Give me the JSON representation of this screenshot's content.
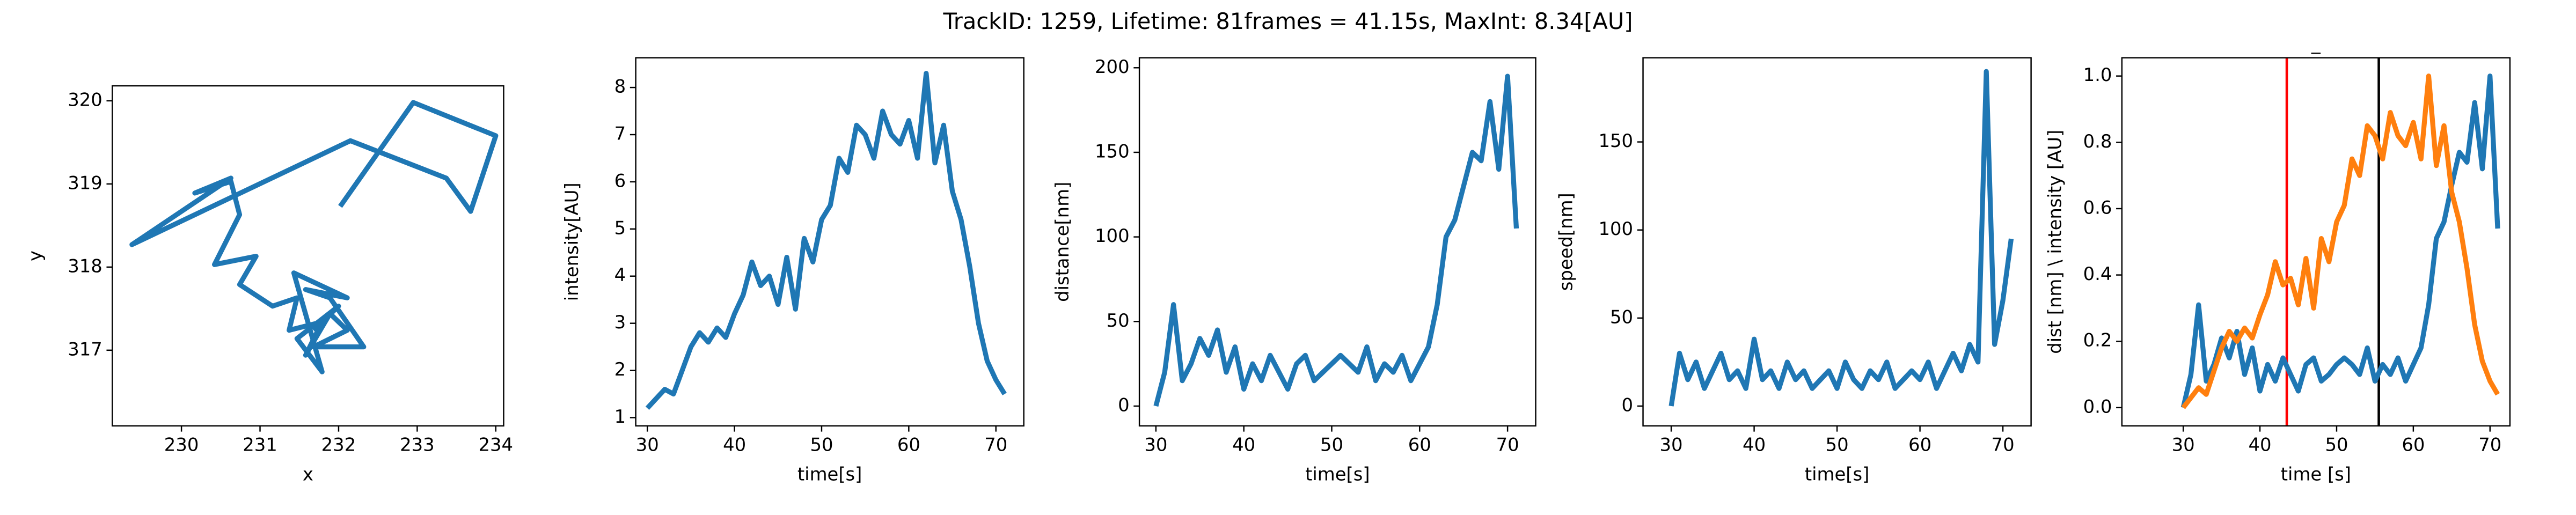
{
  "title": "TrackID: 1259, Lifetime: 81frames = 41.15s, MaxInt: 8.34[AU]",
  "chart_data": [
    {
      "type": "line",
      "xlabel": "x",
      "ylabel": "y",
      "x": [
        232.02,
        232.95,
        234.0,
        233.68,
        233.37,
        232.15,
        229.37,
        230.63,
        230.17,
        230.63,
        230.74,
        230.42,
        230.95,
        230.74,
        231.16,
        231.47,
        231.37,
        231.79,
        231.58,
        231.89,
        232.11,
        231.68,
        232.32,
        231.89,
        231.58,
        232.11,
        231.43,
        231.79,
        231.47,
        232.0,
        231.68
      ],
      "series": [
        {
          "color": "#1f77b4",
          "values": [
            318.73,
            319.98,
            319.58,
            318.67,
            319.07,
            319.52,
            318.27,
            319.07,
            318.89,
            319.03,
            318.63,
            318.03,
            318.13,
            317.79,
            317.53,
            317.63,
            317.24,
            317.34,
            316.94,
            317.44,
            317.24,
            317.04,
            317.04,
            317.63,
            317.73,
            317.63,
            317.93,
            316.74,
            317.14,
            317.53,
            317.24
          ]
        }
      ],
      "xlim": [
        229.12,
        234.1
      ],
      "ylim": [
        316.09,
        320.18
      ],
      "xticks": [
        230,
        231,
        232,
        233,
        234
      ],
      "yticks": [
        317,
        318,
        319,
        320
      ]
    },
    {
      "type": "line",
      "xlabel": "time[s]",
      "ylabel": "intensity[AU]",
      "x": [
        30,
        31,
        32,
        33,
        34,
        35,
        36,
        37,
        38,
        39,
        40,
        41,
        42,
        43,
        44,
        45,
        46,
        47,
        48,
        49,
        50,
        51,
        52,
        53,
        54,
        55,
        56,
        57,
        58,
        59,
        60,
        61,
        62,
        63,
        64,
        65,
        66,
        67,
        68,
        69,
        70,
        71
      ],
      "series": [
        {
          "color": "#1f77b4",
          "values": [
            1.2,
            1.4,
            1.6,
            1.5,
            2.0,
            2.5,
            2.8,
            2.6,
            2.9,
            2.7,
            3.2,
            3.6,
            4.3,
            3.8,
            4.0,
            3.4,
            4.4,
            3.3,
            4.8,
            4.3,
            5.2,
            5.5,
            6.5,
            6.2,
            7.2,
            7.0,
            6.5,
            7.5,
            7.0,
            6.8,
            7.3,
            6.5,
            8.3,
            6.4,
            7.2,
            5.8,
            5.2,
            4.2,
            3.0,
            2.2,
            1.8,
            1.5
          ]
        }
      ],
      "xlim": [
        28.67,
        73.2
      ],
      "ylim": [
        0.825,
        8.63
      ],
      "xticks": [
        30,
        40,
        50,
        60,
        70
      ],
      "yticks": [
        1,
        2,
        3,
        4,
        5,
        6,
        7,
        8
      ]
    },
    {
      "type": "line",
      "xlabel": "time[s]",
      "ylabel": "distance[nm]",
      "x": [
        30,
        31,
        32,
        33,
        34,
        35,
        36,
        37,
        38,
        39,
        40,
        41,
        42,
        43,
        44,
        45,
        46,
        47,
        48,
        49,
        50,
        51,
        52,
        53,
        54,
        55,
        56,
        57,
        58,
        59,
        60,
        61,
        62,
        63,
        64,
        65,
        66,
        67,
        68,
        69,
        70,
        71
      ],
      "series": [
        {
          "color": "#1f77b4",
          "values": [
            0,
            20,
            60,
            15,
            25,
            40,
            30,
            45,
            20,
            35,
            10,
            25,
            15,
            30,
            20,
            10,
            25,
            30,
            15,
            20,
            25,
            30,
            25,
            20,
            35,
            15,
            25,
            20,
            30,
            15,
            25,
            35,
            60,
            100,
            110,
            130,
            150,
            145,
            180,
            140,
            195,
            105
          ]
        }
      ],
      "xlim": [
        28.12,
        73.2
      ],
      "ylim": [
        -11.7,
        205.9
      ],
      "xticks": [
        30,
        40,
        50,
        60,
        70
      ],
      "yticks": [
        0,
        50,
        100,
        150,
        200
      ]
    },
    {
      "type": "line",
      "xlabel": "time[s]",
      "ylabel": "speed[nm]",
      "x": [
        30,
        31,
        32,
        33,
        34,
        35,
        36,
        37,
        38,
        39,
        40,
        41,
        42,
        43,
        44,
        45,
        46,
        47,
        48,
        49,
        50,
        51,
        52,
        53,
        54,
        55,
        56,
        57,
        58,
        59,
        60,
        61,
        62,
        63,
        64,
        65,
        66,
        67,
        68,
        69,
        70,
        71
      ],
      "series": [
        {
          "color": "#1f77b4",
          "values": [
            0,
            30,
            15,
            25,
            10,
            20,
            30,
            15,
            20,
            10,
            38,
            15,
            20,
            10,
            25,
            15,
            20,
            10,
            15,
            20,
            10,
            25,
            15,
            10,
            20,
            15,
            25,
            10,
            15,
            20,
            15,
            25,
            10,
            20,
            30,
            20,
            35,
            25,
            190,
            35,
            60,
            95
          ]
        }
      ],
      "xlim": [
        26.6,
        73.4
      ],
      "ylim": [
        -11.25,
        197.8
      ],
      "xticks": [
        30,
        40,
        50,
        60,
        70
      ],
      "yticks": [
        0,
        50,
        100,
        150
      ]
    },
    {
      "type": "line",
      "title": "_",
      "xlabel": "time [s]",
      "ylabel": "dist [nm] \\ intensity [AU]",
      "x": [
        30,
        31,
        32,
        33,
        34,
        35,
        36,
        37,
        38,
        39,
        40,
        41,
        42,
        43,
        44,
        45,
        46,
        47,
        48,
        49,
        50,
        51,
        52,
        53,
        54,
        55,
        56,
        57,
        58,
        59,
        60,
        61,
        62,
        63,
        64,
        65,
        66,
        67,
        68,
        69,
        70,
        71
      ],
      "series": [
        {
          "color": "#1f77b4",
          "values": [
            0,
            0.1,
            0.31,
            0.08,
            0.13,
            0.21,
            0.15,
            0.23,
            0.1,
            0.18,
            0.05,
            0.13,
            0.08,
            0.15,
            0.1,
            0.05,
            0.13,
            0.15,
            0.08,
            0.1,
            0.13,
            0.15,
            0.13,
            0.1,
            0.18,
            0.08,
            0.13,
            0.1,
            0.15,
            0.08,
            0.13,
            0.18,
            0.31,
            0.51,
            0.56,
            0.67,
            0.77,
            0.74,
            0.92,
            0.72,
            1.0,
            0.54
          ]
        },
        {
          "color": "#ff7f0e",
          "values": [
            0,
            0.03,
            0.06,
            0.04,
            0.11,
            0.18,
            0.23,
            0.2,
            0.24,
            0.21,
            0.28,
            0.34,
            0.44,
            0.37,
            0.39,
            0.31,
            0.45,
            0.3,
            0.51,
            0.44,
            0.56,
            0.61,
            0.75,
            0.7,
            0.85,
            0.82,
            0.75,
            0.89,
            0.82,
            0.79,
            0.86,
            0.75,
            1.0,
            0.73,
            0.85,
            0.65,
            0.56,
            0.42,
            0.25,
            0.14,
            0.08,
            0.04
          ]
        }
      ],
      "vlines": [
        {
          "x": 43.5,
          "color": "red"
        },
        {
          "x": 55.5,
          "color": "black"
        }
      ],
      "xlim": [
        22.0,
        72.6
      ],
      "ylim": [
        -0.055,
        1.055
      ],
      "xticks": [
        30,
        40,
        50,
        60,
        70
      ],
      "yticks": [
        {
          "value": 0,
          "label": "0.0"
        },
        0.2,
        0.4,
        0.6,
        0.8,
        {
          "value": 1,
          "label": "1.0"
        }
      ]
    }
  ]
}
